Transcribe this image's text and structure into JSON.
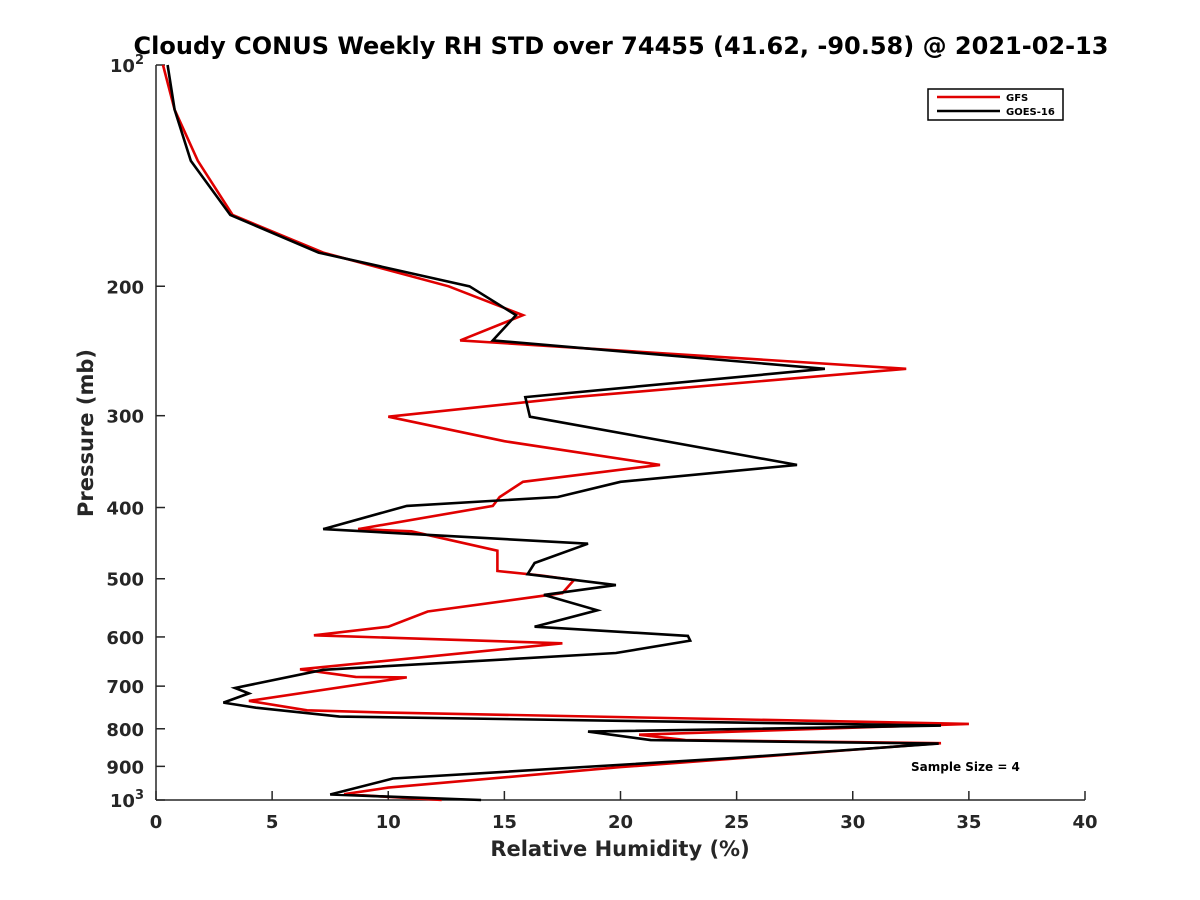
{
  "chart_data": {
    "type": "line",
    "title": "Cloudy CONUS Weekly RH STD over 74455 (41.62, -90.58) @ 2021-02-13",
    "xlabel": "Relative Humidity (%)",
    "ylabel": "Pressure (mb)",
    "xlim": [
      0,
      40
    ],
    "ylim": [
      100,
      1000
    ],
    "yscale": "log",
    "y_reversed": true,
    "x_ticks": [
      "0",
      "5",
      "10",
      "15",
      "20",
      "25",
      "30",
      "35",
      "40"
    ],
    "y_ticks": [
      {
        "value": 100,
        "base": "10",
        "exp": "2"
      },
      {
        "value": 200,
        "label": "200"
      },
      {
        "value": 300,
        "label": "300"
      },
      {
        "value": 400,
        "label": "400"
      },
      {
        "value": 500,
        "label": "500"
      },
      {
        "value": 600,
        "label": "600"
      },
      {
        "value": 700,
        "label": "700"
      },
      {
        "value": 800,
        "label": "800"
      },
      {
        "value": 900,
        "label": "900"
      },
      {
        "value": 1000,
        "base": "10",
        "exp": "3"
      }
    ],
    "legend_position": "top-right",
    "grid": false,
    "annotation": "Sample Size = 4",
    "series": [
      {
        "name": "GFS",
        "color": "#e00000",
        "points": [
          [
            0.3,
            100
          ],
          [
            0.8,
            115
          ],
          [
            1.8,
            135
          ],
          [
            3.3,
            160
          ],
          [
            7.2,
            180
          ],
          [
            12.6,
            200
          ],
          [
            15.8,
            219
          ],
          [
            13.1,
            237
          ],
          [
            32.3,
            259
          ],
          [
            18.0,
            283
          ],
          [
            10.0,
            301
          ],
          [
            15.0,
            325
          ],
          [
            21.7,
            350
          ],
          [
            15.8,
            369
          ],
          [
            14.8,
            387
          ],
          [
            14.5,
            398
          ],
          [
            8.7,
            428
          ],
          [
            11.0,
            431
          ],
          [
            14.7,
            458
          ],
          [
            14.7,
            488
          ],
          [
            16.6,
            495
          ],
          [
            18.0,
            502
          ],
          [
            17.5,
            523
          ],
          [
            11.7,
            554
          ],
          [
            10.0,
            581
          ],
          [
            6.8,
            597
          ],
          [
            17.5,
            612
          ],
          [
            6.2,
            664
          ],
          [
            8.6,
            680
          ],
          [
            10.8,
            681
          ],
          [
            4.0,
            733
          ],
          [
            6.5,
            755
          ],
          [
            9.7,
            760
          ],
          [
            35.0,
            788
          ],
          [
            20.8,
            815
          ],
          [
            22.8,
            829
          ],
          [
            33.8,
            837
          ],
          [
            20.0,
            902
          ],
          [
            10.0,
            962
          ],
          [
            8.1,
            982
          ],
          [
            12.3,
            1000
          ]
        ]
      },
      {
        "name": "GOES-16",
        "color": "#000000",
        "points": [
          [
            0.5,
            100
          ],
          [
            0.8,
            115
          ],
          [
            1.5,
            135
          ],
          [
            3.2,
            160
          ],
          [
            7.0,
            180
          ],
          [
            13.5,
            200
          ],
          [
            15.5,
            219
          ],
          [
            14.5,
            237
          ],
          [
            28.8,
            259
          ],
          [
            15.9,
            283
          ],
          [
            16.1,
            301
          ],
          [
            27.6,
            350
          ],
          [
            20.0,
            369
          ],
          [
            17.3,
            387
          ],
          [
            10.8,
            398
          ],
          [
            7.2,
            428
          ],
          [
            18.6,
            448
          ],
          [
            16.3,
            476
          ],
          [
            16.0,
            493
          ],
          [
            19.8,
            510
          ],
          [
            16.7,
            526
          ],
          [
            19.0,
            552
          ],
          [
            16.3,
            581
          ],
          [
            22.9,
            598
          ],
          [
            23.0,
            607
          ],
          [
            19.8,
            631
          ],
          [
            7.2,
            665
          ],
          [
            3.4,
            704
          ],
          [
            4.0,
            716
          ],
          [
            2.9,
            737
          ],
          [
            4.3,
            749
          ],
          [
            7.9,
            770
          ],
          [
            33.8,
            792
          ],
          [
            18.6,
            807
          ],
          [
            21.3,
            829
          ],
          [
            33.7,
            838
          ],
          [
            24.8,
            877
          ],
          [
            10.2,
            935
          ],
          [
            7.5,
            983
          ],
          [
            14.0,
            1000
          ]
        ]
      }
    ]
  }
}
